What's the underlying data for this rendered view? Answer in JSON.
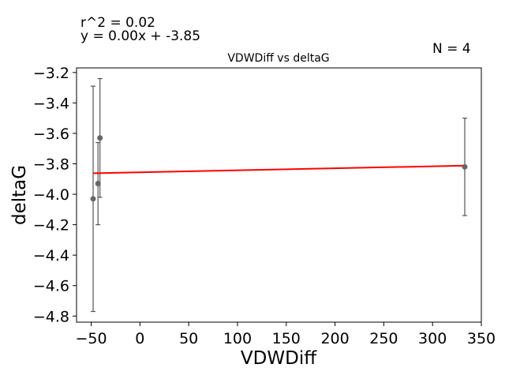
{
  "annotations": {
    "r_squared": "r^2 = 0.02",
    "equation": "y = 0.00x + -3.85",
    "n_label": "N = 4"
  },
  "chart_data": {
    "type": "scatter",
    "title": "VDWDiff vs deltaG",
    "xlabel": "VDWDiff",
    "ylabel": "deltaG",
    "xlim": [
      -65,
      350
    ],
    "ylim": [
      -4.84,
      -3.17
    ],
    "xticks": [
      -50,
      0,
      50,
      100,
      150,
      200,
      250,
      300,
      350
    ],
    "xtick_labels": [
      "−50",
      "0",
      "50",
      "100",
      "150",
      "200",
      "250",
      "300",
      "350"
    ],
    "yticks": [
      -3.2,
      -3.4,
      -3.6,
      -3.8,
      -4.0,
      -4.2,
      -4.4,
      -4.6,
      -4.8
    ],
    "ytick_labels": [
      "−3.2",
      "−3.4",
      "−3.6",
      "−3.8",
      "−4.0",
      "−4.2",
      "−4.4",
      "−4.6",
      "−4.8"
    ],
    "grid": false,
    "points": [
      {
        "x": -48,
        "y": -4.03,
        "yerr": 0.74
      },
      {
        "x": -43,
        "y": -3.93,
        "yerr": 0.27
      },
      {
        "x": -41,
        "y": -3.63,
        "yerr": 0.39
      },
      {
        "x": 333,
        "y": -3.82,
        "yerr": 0.32
      }
    ],
    "fit_line": {
      "x": [
        -48,
        333
      ],
      "y": [
        -3.862,
        -3.812
      ],
      "color": "#ff0000"
    },
    "point_color": "#666666",
    "errorbar_color": "#555555"
  }
}
